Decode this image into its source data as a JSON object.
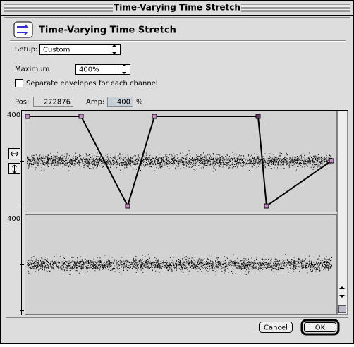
{
  "window": {
    "title": "Time-Varying Time Stretch"
  },
  "header": {
    "title": "Time-Varying Time Stretch"
  },
  "setup": {
    "label": "Setup:",
    "value": "Custom"
  },
  "maximum": {
    "label": "Maximum",
    "value": "400%"
  },
  "checkbox": {
    "label": "Separate envelopes for each channel"
  },
  "pos": {
    "label": "Pos:",
    "value": "272876"
  },
  "amp": {
    "label": "Amp:",
    "value": "400",
    "unit": "%"
  },
  "channels": [
    {
      "top_label": "400"
    },
    {
      "top_label": "400"
    }
  ],
  "buttons": {
    "cancel": "Cancel",
    "ok": "OK"
  }
}
